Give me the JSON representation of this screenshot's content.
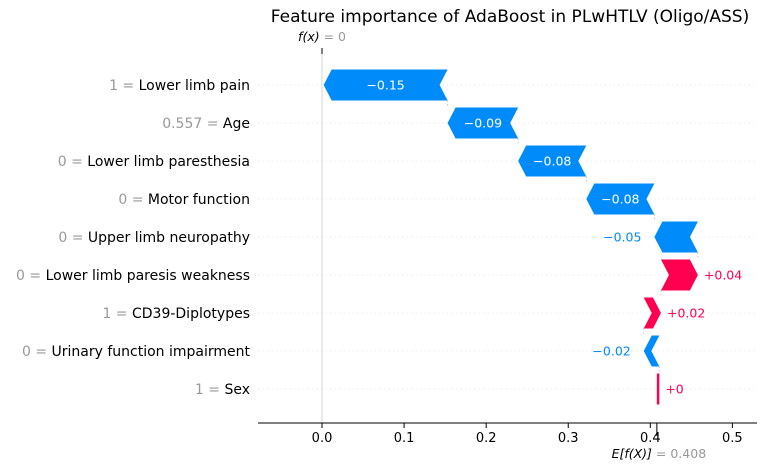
{
  "chart_data": {
    "type": "waterfall",
    "title": "Feature importance of AdaBoost in PLwHTLV (Oligo/ASS)",
    "fx_label_prefix": "f(x)",
    "fx_value": "0",
    "ex_label_prefix": "E[f(X)]",
    "ex_value": "0.408",
    "base_value": 0.408,
    "final_value": 0,
    "xlim": [
      -0.078,
      0.53
    ],
    "xticks": [
      "0.0",
      "0.1",
      "0.2",
      "0.3",
      "0.4",
      "0.5"
    ],
    "features": [
      {
        "value": "1",
        "name": "Lower limb pain",
        "contribution": -0.151,
        "label": "−0.15"
      },
      {
        "value": "0.557",
        "name": "Age",
        "contribution": -0.086,
        "label": "−0.09"
      },
      {
        "value": "0",
        "name": "Lower limb paresthesia",
        "contribution": -0.083,
        "label": "−0.08"
      },
      {
        "value": "0",
        "name": "Motor function",
        "contribution": -0.083,
        "label": "−0.08"
      },
      {
        "value": "0",
        "name": "Upper limb neuropathy",
        "contribution": -0.053,
        "label": "−0.05"
      },
      {
        "value": "0",
        "name": "Lower limb paresis weakness",
        "contribution": 0.045,
        "label": "+0.04"
      },
      {
        "value": "1",
        "name": "CD39-Diplotypes",
        "contribution": 0.021,
        "label": "+0.02"
      },
      {
        "value": "0",
        "name": "Urinary function impairment",
        "contribution": -0.019,
        "label": "−0.02"
      },
      {
        "value": "1",
        "name": "Sex",
        "contribution": 0.003,
        "label": "+0"
      }
    ],
    "colors": {
      "positive": "#ff0051",
      "negative": "#008bfb",
      "inside_text": "#ffffff",
      "muted": "#999999",
      "grid": "#cccccc"
    }
  }
}
